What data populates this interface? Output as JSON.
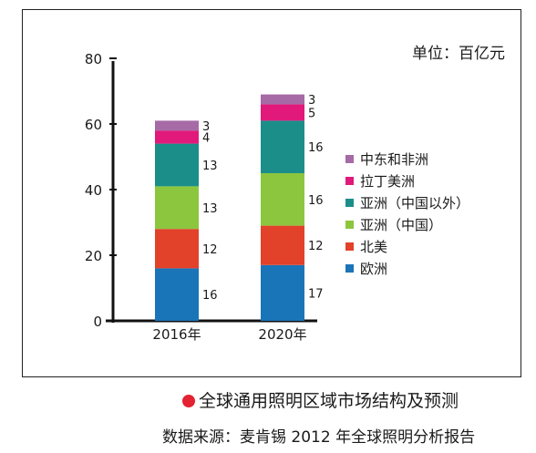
{
  "chart_data": {
    "type": "bar",
    "stacked": true,
    "unit_label": "单位：百亿元",
    "categories": [
      "2016年",
      "2020年"
    ],
    "ylim": [
      0,
      80
    ],
    "yticks": [
      0,
      20,
      40,
      60,
      80
    ],
    "series": [
      {
        "name": "欧洲",
        "color": "#1a74b8",
        "values": [
          16,
          17
        ]
      },
      {
        "name": "北美",
        "color": "#e2412a",
        "values": [
          12,
          12
        ]
      },
      {
        "name": "亚洲（中国）",
        "color": "#8cc63e",
        "values": [
          13,
          16
        ]
      },
      {
        "name": "亚洲（中国以外）",
        "color": "#1b8e8a",
        "values": [
          13,
          16
        ]
      },
      {
        "name": "拉丁美洲",
        "color": "#e0197a",
        "values": [
          4,
          5
        ]
      },
      {
        "name": "中东和非洲",
        "color": "#a66aa6",
        "values": [
          3,
          3
        ]
      }
    ],
    "legend_position": "right",
    "grid": false
  },
  "caption": {
    "text": "全球通用照明区域市场结构及预测",
    "dot_color": "#e32232"
  },
  "source": "数据来源：麦肯锡 2012 年全球照明分析报告"
}
